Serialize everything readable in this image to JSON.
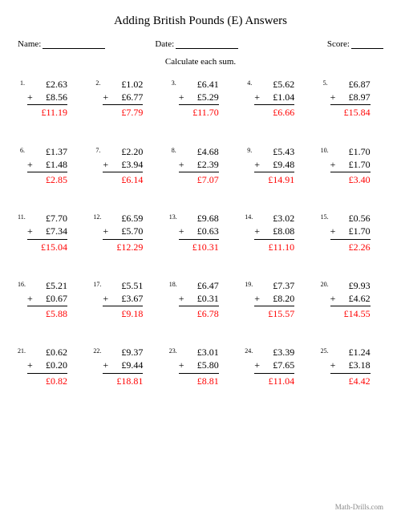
{
  "title": "Adding British Pounds (E) Answers",
  "labels": {
    "name": "Name:",
    "date": "Date:",
    "score": "Score:"
  },
  "instruction": "Calculate each sum.",
  "footer": "Math-Drills.com",
  "colors": {
    "answer": "#ff0000",
    "text": "#000000",
    "bg": "#ffffff"
  },
  "font": {
    "family": "Times New Roman",
    "title_size": 15,
    "body_size": 12,
    "num_size": 8
  },
  "currency": "£",
  "operator": "+",
  "problems": [
    {
      "n": "1.",
      "a": "£2.63",
      "b": "£8.56",
      "ans": "£11.19"
    },
    {
      "n": "2.",
      "a": "£1.02",
      "b": "£6.77",
      "ans": "£7.79"
    },
    {
      "n": "3.",
      "a": "£6.41",
      "b": "£5.29",
      "ans": "£11.70"
    },
    {
      "n": "4.",
      "a": "£5.62",
      "b": "£1.04",
      "ans": "£6.66"
    },
    {
      "n": "5.",
      "a": "£6.87",
      "b": "£8.97",
      "ans": "£15.84"
    },
    {
      "n": "6.",
      "a": "£1.37",
      "b": "£1.48",
      "ans": "£2.85"
    },
    {
      "n": "7.",
      "a": "£2.20",
      "b": "£3.94",
      "ans": "£6.14"
    },
    {
      "n": "8.",
      "a": "£4.68",
      "b": "£2.39",
      "ans": "£7.07"
    },
    {
      "n": "9.",
      "a": "£5.43",
      "b": "£9.48",
      "ans": "£14.91"
    },
    {
      "n": "10.",
      "a": "£1.70",
      "b": "£1.70",
      "ans": "£3.40"
    },
    {
      "n": "11.",
      "a": "£7.70",
      "b": "£7.34",
      "ans": "£15.04"
    },
    {
      "n": "12.",
      "a": "£6.59",
      "b": "£5.70",
      "ans": "£12.29"
    },
    {
      "n": "13.",
      "a": "£9.68",
      "b": "£0.63",
      "ans": "£10.31"
    },
    {
      "n": "14.",
      "a": "£3.02",
      "b": "£8.08",
      "ans": "£11.10"
    },
    {
      "n": "15.",
      "a": "£0.56",
      "b": "£1.70",
      "ans": "£2.26"
    },
    {
      "n": "16.",
      "a": "£5.21",
      "b": "£0.67",
      "ans": "£5.88"
    },
    {
      "n": "17.",
      "a": "£5.51",
      "b": "£3.67",
      "ans": "£9.18"
    },
    {
      "n": "18.",
      "a": "£6.47",
      "b": "£0.31",
      "ans": "£6.78"
    },
    {
      "n": "19.",
      "a": "£7.37",
      "b": "£8.20",
      "ans": "£15.57"
    },
    {
      "n": "20.",
      "a": "£9.93",
      "b": "£4.62",
      "ans": "£14.55"
    },
    {
      "n": "21.",
      "a": "£0.62",
      "b": "£0.20",
      "ans": "£0.82"
    },
    {
      "n": "22.",
      "a": "£9.37",
      "b": "£9.44",
      "ans": "£18.81"
    },
    {
      "n": "23.",
      "a": "£3.01",
      "b": "£5.80",
      "ans": "£8.81"
    },
    {
      "n": "24.",
      "a": "£3.39",
      "b": "£7.65",
      "ans": "£11.04"
    },
    {
      "n": "25.",
      "a": "£1.24",
      "b": "£3.18",
      "ans": "£4.42"
    }
  ]
}
